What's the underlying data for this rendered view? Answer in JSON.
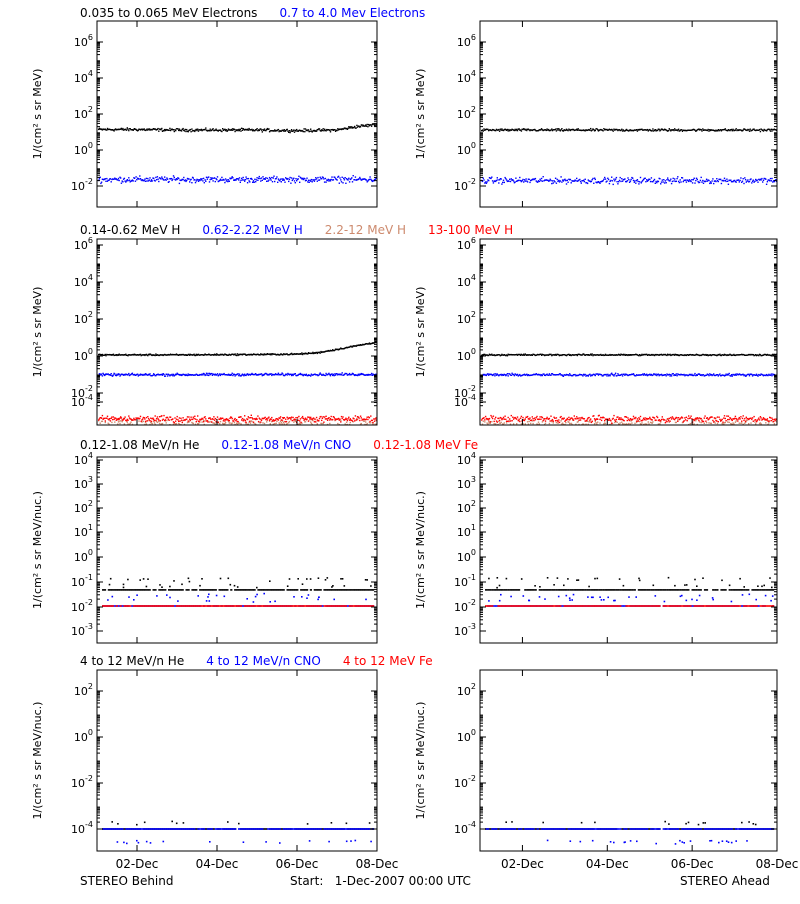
{
  "footer": {
    "left": "STEREO Behind",
    "center": "Start:   1-Dec-2007 00:00 UTC",
    "right": "STEREO Ahead"
  },
  "x_ticks": [
    "02-Dec",
    "04-Dec",
    "06-Dec",
    "08-Dec"
  ],
  "colors": {
    "black": "#000000",
    "blue": "#0000ff",
    "brown": "#cd8a6e",
    "red": "#ff0000"
  },
  "rows": [
    {
      "legend": [
        {
          "text": "0.035 to 0.065 MeV Electrons",
          "color": "#000000"
        },
        {
          "text": "0.7 to 4.0 Mev Electrons",
          "color": "#0000ff"
        }
      ],
      "ylabel": "1/(cm² s sr MeV)",
      "ticks": [
        {
          "base": "10",
          "exp": "6"
        },
        {
          "base": "10",
          "exp": "4"
        },
        {
          "base": "10",
          "exp": "2"
        },
        {
          "base": "10",
          "exp": "0"
        },
        {
          "base": "10",
          "exp": "-2"
        }
      ]
    },
    {
      "legend": [
        {
          "text": "0.14-0.62 MeV H",
          "color": "#000000"
        },
        {
          "text": "0.62-2.22 MeV H",
          "color": "#0000ff"
        },
        {
          "text": "2.2-12 MeV H",
          "color": "#cd8a6e"
        },
        {
          "text": "13-100 MeV H",
          "color": "#ff0000"
        }
      ],
      "ylabel": "1/(cm² s sr MeV)",
      "ticks": [
        {
          "base": "10",
          "exp": "6"
        },
        {
          "base": "10",
          "exp": "4"
        },
        {
          "base": "10",
          "exp": "2"
        },
        {
          "base": "10",
          "exp": "0"
        },
        {
          "base": "10",
          "exp": "-2"
        },
        {
          "base": "10",
          "exp": "-4"
        }
      ]
    },
    {
      "legend": [
        {
          "text": "0.12-1.08 MeV/n He",
          "color": "#000000"
        },
        {
          "text": "0.12-1.08 MeV/n CNO",
          "color": "#0000ff"
        },
        {
          "text": "0.12-1.08 MeV Fe",
          "color": "#ff0000"
        }
      ],
      "ylabel": "1/(cm² s sr MeV/nuc.)",
      "ticks": [
        {
          "base": "10",
          "exp": "4"
        },
        {
          "base": "10",
          "exp": "3"
        },
        {
          "base": "10",
          "exp": "2"
        },
        {
          "base": "10",
          "exp": "1"
        },
        {
          "base": "10",
          "exp": "0"
        },
        {
          "base": "10",
          "exp": "-1"
        },
        {
          "base": "10",
          "exp": "-2"
        },
        {
          "base": "10",
          "exp": "-3"
        }
      ]
    },
    {
      "legend": [
        {
          "text": "4 to 12 MeV/n He",
          "color": "#000000"
        },
        {
          "text": "4 to 12 MeV/n CNO",
          "color": "#0000ff"
        },
        {
          "text": "4 to 12 MeV Fe",
          "color": "#ff0000"
        }
      ],
      "ylabel": "1/(cm² s sr MeV/nuc.)",
      "ticks": [
        {
          "base": "10",
          "exp": "2"
        },
        {
          "base": "10",
          "exp": "0"
        },
        {
          "base": "10",
          "exp": "-2"
        },
        {
          "base": "10",
          "exp": "-4"
        }
      ]
    }
  ],
  "chart_data": [
    {
      "type": "scatter",
      "spacecraft": "STEREO Behind",
      "panel": "electrons",
      "x_range": [
        "2007-12-01",
        "2007-12-08"
      ],
      "yscale": "log",
      "ylim": [
        0.001,
        10000000
      ],
      "series": [
        {
          "name": "0.035 to 0.065 MeV Electrons",
          "color": "#000000",
          "x": [
            "2007-12-01",
            "2007-12-02",
            "2007-12-03",
            "2007-12-04",
            "2007-12-05",
            "2007-12-06",
            "2007-12-07",
            "2007-12-07.5",
            "2007-12-08"
          ],
          "y": [
            15,
            15,
            14,
            14,
            14,
            13,
            14,
            22,
            28
          ],
          "scatter": 0.12
        },
        {
          "name": "0.7 to 4.0 Mev Electrons",
          "color": "#0000ff",
          "x": [
            "2007-12-01",
            "2007-12-08"
          ],
          "y": [
            0.025,
            0.025
          ],
          "scatter": 0.25
        }
      ]
    },
    {
      "type": "scatter",
      "spacecraft": "STEREO Ahead",
      "panel": "electrons",
      "x_range": [
        "2007-12-01",
        "2007-12-08"
      ],
      "yscale": "log",
      "ylim": [
        0.001,
        10000000
      ],
      "series": [
        {
          "name": "0.035 to 0.065 MeV Electrons",
          "color": "#000000",
          "x": [
            "2007-12-01",
            "2007-12-08"
          ],
          "y": [
            14,
            14
          ],
          "scatter": 0.1
        },
        {
          "name": "0.7 to 4.0 Mev Electrons",
          "color": "#0000ff",
          "x": [
            "2007-12-01",
            "2007-12-08"
          ],
          "y": [
            0.022,
            0.022
          ],
          "scatter": 0.25
        }
      ]
    },
    {
      "type": "scatter",
      "spacecraft": "STEREO Behind",
      "panel": "protons",
      "x_range": [
        "2007-12-01",
        "2007-12-08"
      ],
      "yscale": "log",
      "ylim": [
        1e-05,
        10000000
      ],
      "series": [
        {
          "name": "0.14-0.62 MeV H",
          "color": "#000000",
          "x": [
            "2007-12-01",
            "2007-12-03",
            "2007-12-05",
            "2007-12-06",
            "2007-12-06.5",
            "2007-12-07",
            "2007-12-07.5",
            "2007-12-08"
          ],
          "y": [
            1.0,
            1.0,
            1.05,
            1.1,
            1.3,
            2.0,
            3.2,
            5.0
          ],
          "scatter": 0.06
        },
        {
          "name": "0.62-2.22 MeV H",
          "color": "#0000ff",
          "x": [
            "2007-12-01",
            "2007-12-08"
          ],
          "y": [
            0.08,
            0.085
          ],
          "scatter": 0.1
        },
        {
          "name": "2.2-12 MeV H",
          "color": "#cd8a6e",
          "x": [
            "2007-12-01",
            "2007-12-08"
          ],
          "y": [
            0.00015,
            0.00015
          ],
          "scatter": 0.4
        },
        {
          "name": "13-100 MeV H",
          "color": "#ff0000",
          "x": [
            "2007-12-01",
            "2007-12-08"
          ],
          "y": [
            0.0003,
            0.0003
          ],
          "scatter": 0.25
        }
      ]
    },
    {
      "type": "scatter",
      "spacecraft": "STEREO Ahead",
      "panel": "protons",
      "x_range": [
        "2007-12-01",
        "2007-12-08"
      ],
      "yscale": "log",
      "ylim": [
        1e-05,
        10000000
      ],
      "series": [
        {
          "name": "0.14-0.62 MeV H",
          "color": "#000000",
          "x": [
            "2007-12-01",
            "2007-12-08"
          ],
          "y": [
            1.0,
            1.0
          ],
          "scatter": 0.06
        },
        {
          "name": "0.62-2.22 MeV H",
          "color": "#0000ff",
          "x": [
            "2007-12-01",
            "2007-12-08"
          ],
          "y": [
            0.08,
            0.08
          ],
          "scatter": 0.1
        },
        {
          "name": "2.2-12 MeV H",
          "color": "#cd8a6e",
          "x": [
            "2007-12-01",
            "2007-12-08"
          ],
          "y": [
            0.00015,
            0.00015
          ],
          "scatter": 0.4
        },
        {
          "name": "13-100 MeV H",
          "color": "#ff0000",
          "x": [
            "2007-12-01",
            "2007-12-08"
          ],
          "y": [
            0.0003,
            0.0003
          ],
          "scatter": 0.25
        }
      ]
    },
    {
      "type": "scatter",
      "spacecraft": "STEREO Behind",
      "panel": "low-energy heavy ions",
      "x_range": [
        "2007-12-01",
        "2007-12-08"
      ],
      "yscale": "log",
      "ylim": [
        0.0005,
        10000
      ],
      "series": [
        {
          "name": "0.12-1.08 MeV/n He",
          "color": "#000000",
          "floor": 0.05,
          "spikes": [
            0.08,
            0.15
          ]
        },
        {
          "name": "0.12-1.08 MeV/n CNO",
          "color": "#0000ff",
          "floor": 0.011,
          "spikes": [
            0.02,
            0.03
          ]
        },
        {
          "name": "0.12-1.08 MeV Fe",
          "color": "#ff0000",
          "floor": 0.011,
          "spikes": []
        }
      ]
    },
    {
      "type": "scatter",
      "spacecraft": "STEREO Ahead",
      "panel": "low-energy heavy ions",
      "x_range": [
        "2007-12-01",
        "2007-12-08"
      ],
      "yscale": "log",
      "ylim": [
        0.0005,
        10000
      ],
      "series": [
        {
          "name": "0.12-1.08 MeV/n He",
          "color": "#000000",
          "floor": 0.05,
          "spikes": [
            0.08,
            0.15
          ]
        },
        {
          "name": "0.12-1.08 MeV/n CNO",
          "color": "#0000ff",
          "floor": 0.011,
          "spikes": [
            0.02,
            0.03
          ]
        },
        {
          "name": "0.12-1.08 MeV Fe",
          "color": "#ff0000",
          "floor": 0.011,
          "spikes": []
        }
      ]
    },
    {
      "type": "scatter",
      "spacecraft": "STEREO Behind",
      "panel": "high-energy heavy ions",
      "x_range": [
        "2007-12-01",
        "2007-12-08"
      ],
      "yscale": "log",
      "ylim": [
        3e-06,
        1000
      ],
      "series": [
        {
          "name": "4 to 12 MeV/n He",
          "color": "#000000",
          "floor": 0.0001,
          "spikes": [
            0.0002
          ]
        },
        {
          "name": "4 to 12 MeV/n CNO",
          "color": "#0000ff",
          "floor": 0.0001,
          "spikes": [
            3e-05,
            1e-05
          ]
        },
        {
          "name": "4 to 12 MeV Fe",
          "color": "#ff0000",
          "floor": 1e-05,
          "spikes": []
        }
      ]
    },
    {
      "type": "scatter",
      "spacecraft": "STEREO Ahead",
      "panel": "high-energy heavy ions",
      "x_range": [
        "2007-12-01",
        "2007-12-08"
      ],
      "yscale": "log",
      "ylim": [
        3e-06,
        1000
      ],
      "series": [
        {
          "name": "4 to 12 MeV/n He",
          "color": "#000000",
          "floor": 0.0001,
          "spikes": [
            0.0002
          ]
        },
        {
          "name": "4 to 12 MeV/n CNO",
          "color": "#0000ff",
          "floor": 0.0001,
          "spikes": [
            3e-05,
            1e-05
          ]
        },
        {
          "name": "4 to 12 MeV Fe",
          "color": "#ff0000",
          "floor": 1e-05,
          "spikes": []
        }
      ]
    }
  ]
}
